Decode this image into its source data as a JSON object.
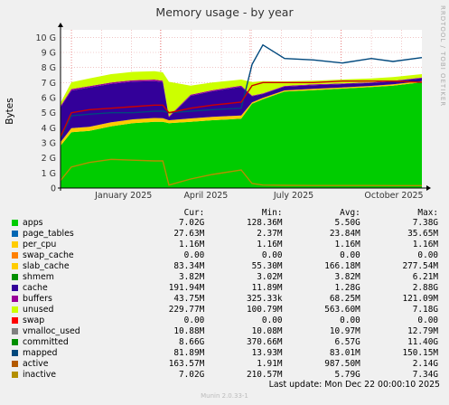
{
  "title": "Memory usage - by year",
  "side_label": "RRDTOOL / TOBI OETIKER",
  "last_update": "Last update:  Mon Dec 22 00:00:10 2025",
  "munin_version": "Munin 2.0.33-1",
  "legend_headers": [
    "Cur:",
    "Min:",
    "Avg:",
    "Max:"
  ],
  "legend": [
    {
      "name": "apps",
      "color": "#00cc00",
      "cur": "7.02G",
      "min": "128.36M",
      "avg": "5.50G",
      "max": "7.38G"
    },
    {
      "name": "page_tables",
      "color": "#0066b3",
      "cur": "27.63M",
      "min": "2.37M",
      "avg": "23.84M",
      "max": "35.65M"
    },
    {
      "name": "per_cpu",
      "color": "#ffcc00",
      "cur": "1.16M",
      "min": "1.16M",
      "avg": "1.16M",
      "max": "1.16M"
    },
    {
      "name": "swap_cache",
      "color": "#ff8000",
      "cur": "0.00",
      "min": "0.00",
      "avg": "0.00",
      "max": "0.00"
    },
    {
      "name": "slab_cache",
      "color": "#ffcc00",
      "cur": "83.34M",
      "min": "55.30M",
      "avg": "166.18M",
      "max": "277.54M"
    },
    {
      "name": "shmem",
      "color": "#008f00",
      "cur": "3.82M",
      "min": "3.02M",
      "avg": "3.82M",
      "max": "6.21M"
    },
    {
      "name": "cache",
      "color": "#330099",
      "cur": "191.94M",
      "min": "11.89M",
      "avg": "1.28G",
      "max": "2.88G"
    },
    {
      "name": "buffers",
      "color": "#990099",
      "cur": "43.75M",
      "min": "325.33k",
      "avg": "68.25M",
      "max": "121.09M"
    },
    {
      "name": "unused",
      "color": "#ccff00",
      "cur": "229.77M",
      "min": "100.79M",
      "avg": "563.60M",
      "max": "7.18G"
    },
    {
      "name": "swap",
      "color": "#ff0000",
      "cur": "0.00",
      "min": "0.00",
      "avg": "0.00",
      "max": "0.00"
    },
    {
      "name": "vmalloc_used",
      "color": "#808080",
      "cur": "10.88M",
      "min": "10.08M",
      "avg": "10.97M",
      "max": "12.79M"
    },
    {
      "name": "committed",
      "color": "#008f00",
      "cur": "8.66G",
      "min": "370.66M",
      "avg": "6.57G",
      "max": "11.40G"
    },
    {
      "name": "mapped",
      "color": "#00487d",
      "cur": "81.89M",
      "min": "13.93M",
      "avg": "83.01M",
      "max": "150.15M"
    },
    {
      "name": "active",
      "color": "#b35a00",
      "cur": "163.57M",
      "min": "1.91M",
      "avg": "987.50M",
      "max": "2.14G"
    },
    {
      "name": "inactive",
      "color": "#b38f00",
      "cur": "7.02G",
      "min": "210.57M",
      "avg": "5.79G",
      "max": "7.34G"
    }
  ],
  "chart_data": {
    "type": "area",
    "title": "Memory usage - by year",
    "ylabel": "Bytes",
    "ylim": [
      0,
      10.5
    ],
    "y_unit": "G",
    "y_ticks": [
      "0",
      "1 G",
      "2 G",
      "3 G",
      "4 G",
      "5 G",
      "6 G",
      "7 G",
      "8 G",
      "9 G",
      "10 G"
    ],
    "y_tick_values": [
      0,
      1,
      2,
      3,
      4,
      5,
      6,
      7,
      8,
      9,
      10
    ],
    "x_range": [
      "2024-12-21",
      "2025-12-22"
    ],
    "x_ticks": [
      {
        "label": "January 2025",
        "date": "2025-01-01",
        "pos": 0.0302
      },
      {
        "label": "April 2025",
        "date": "2025-04-01",
        "pos": 0.2761
      },
      {
        "label": "July 2025",
        "date": "2025-07-01",
        "pos": 0.5247
      },
      {
        "label": "October 2025",
        "date": "2025-10-01",
        "pos": 0.776
      }
    ],
    "x": [
      0.0,
      0.03,
      0.08,
      0.14,
      0.2,
      0.26,
      0.283,
      0.3,
      0.36,
      0.42,
      0.5,
      0.53,
      0.56,
      0.62,
      0.7,
      0.78,
      0.86,
      0.92,
      1.0
    ],
    "series": [
      {
        "name": "apps",
        "stacked": true,
        "values": [
          2.8,
          3.7,
          3.8,
          4.1,
          4.3,
          4.4,
          4.4,
          4.3,
          4.4,
          4.5,
          4.6,
          5.6,
          5.9,
          6.4,
          6.5,
          6.6,
          6.7,
          6.8,
          7.02
        ]
      },
      {
        "name": "slab_cache",
        "stacked": true,
        "values": [
          0.25,
          0.27,
          0.27,
          0.26,
          0.26,
          0.25,
          0.23,
          0.2,
          0.22,
          0.22,
          0.22,
          0.09,
          0.09,
          0.08,
          0.08,
          0.08,
          0.08,
          0.08,
          0.08
        ]
      },
      {
        "name": "cache",
        "stacked": true,
        "values": [
          2.3,
          2.5,
          2.6,
          2.55,
          2.5,
          2.45,
          2.4,
          0.2,
          1.5,
          1.7,
          1.9,
          0.4,
          0.25,
          0.25,
          0.25,
          0.22,
          0.2,
          0.2,
          0.19
        ]
      },
      {
        "name": "buffers",
        "stacked": true,
        "values": [
          0.1,
          0.1,
          0.1,
          0.1,
          0.1,
          0.1,
          0.1,
          0.05,
          0.08,
          0.08,
          0.08,
          0.05,
          0.05,
          0.05,
          0.05,
          0.05,
          0.04,
          0.04,
          0.04
        ]
      },
      {
        "name": "unused",
        "stacked": true,
        "values": [
          0.2,
          0.45,
          0.5,
          0.55,
          0.55,
          0.55,
          0.55,
          2.3,
          0.6,
          0.5,
          0.4,
          0.9,
          0.8,
          0.3,
          0.25,
          0.25,
          0.25,
          0.25,
          0.23
        ]
      },
      {
        "name": "committed",
        "stacked": false,
        "values": [
          3.3,
          4.8,
          4.9,
          5.0,
          5.0,
          5.1,
          5.1,
          5.0,
          5.1,
          5.2,
          5.3,
          8.2,
          9.5,
          8.6,
          8.5,
          8.3,
          8.6,
          8.4,
          8.66
        ]
      },
      {
        "name": "inactive",
        "stacked": false,
        "values": [
          3.4,
          5.0,
          5.2,
          5.3,
          5.4,
          5.5,
          5.5,
          5.0,
          5.3,
          5.5,
          5.7,
          6.8,
          7.0,
          7.0,
          7.0,
          7.1,
          7.1,
          7.1,
          7.02
        ]
      },
      {
        "name": "active",
        "stacked": false,
        "values": [
          0.5,
          1.4,
          1.7,
          1.9,
          1.85,
          1.8,
          1.8,
          0.2,
          0.6,
          0.9,
          1.2,
          0.3,
          0.2,
          0.18,
          0.17,
          0.17,
          0.17,
          0.16,
          0.16
        ]
      }
    ]
  }
}
